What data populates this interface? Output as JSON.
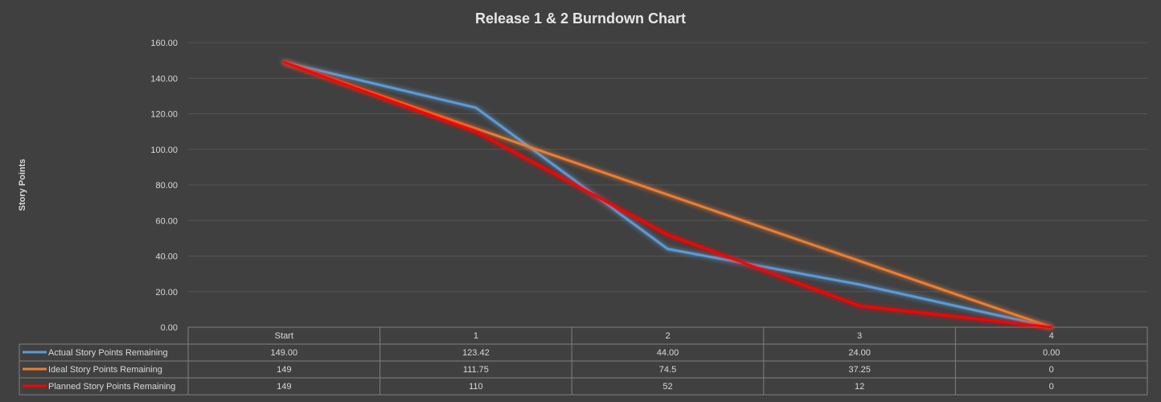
{
  "chart_data": {
    "type": "line",
    "title": "Release 1 & 2 Burndown Chart",
    "ylabel": "Story Points",
    "xlabel": "",
    "ylim": [
      0,
      160
    ],
    "yticks": [
      "0.00",
      "20.00",
      "40.00",
      "60.00",
      "80.00",
      "100.00",
      "120.00",
      "140.00",
      "160.00"
    ],
    "grid": true,
    "legend": "data-table",
    "categories": [
      "Start",
      "1",
      "2",
      "3",
      "4"
    ],
    "series": [
      {
        "name": "Actual Story Points Remaining",
        "color": "#5b9bd5",
        "values": [
          149.0,
          123.42,
          44.0,
          24.0,
          0.0
        ],
        "labels": [
          "149.00",
          "123.42",
          "44.00",
          "24.00",
          "0.00"
        ]
      },
      {
        "name": "Ideal Story Points Remaining",
        "color": "#ed7d31",
        "values": [
          149,
          111.75,
          74.5,
          37.25,
          0
        ],
        "labels": [
          "149",
          "111.75",
          "74.5",
          "37.25",
          "0"
        ]
      },
      {
        "name": "Planned Story Points Remaining",
        "color": "#ff0000",
        "values": [
          149,
          110,
          52,
          12,
          0
        ],
        "labels": [
          "149",
          "110",
          "52",
          "12",
          "0"
        ]
      }
    ]
  }
}
